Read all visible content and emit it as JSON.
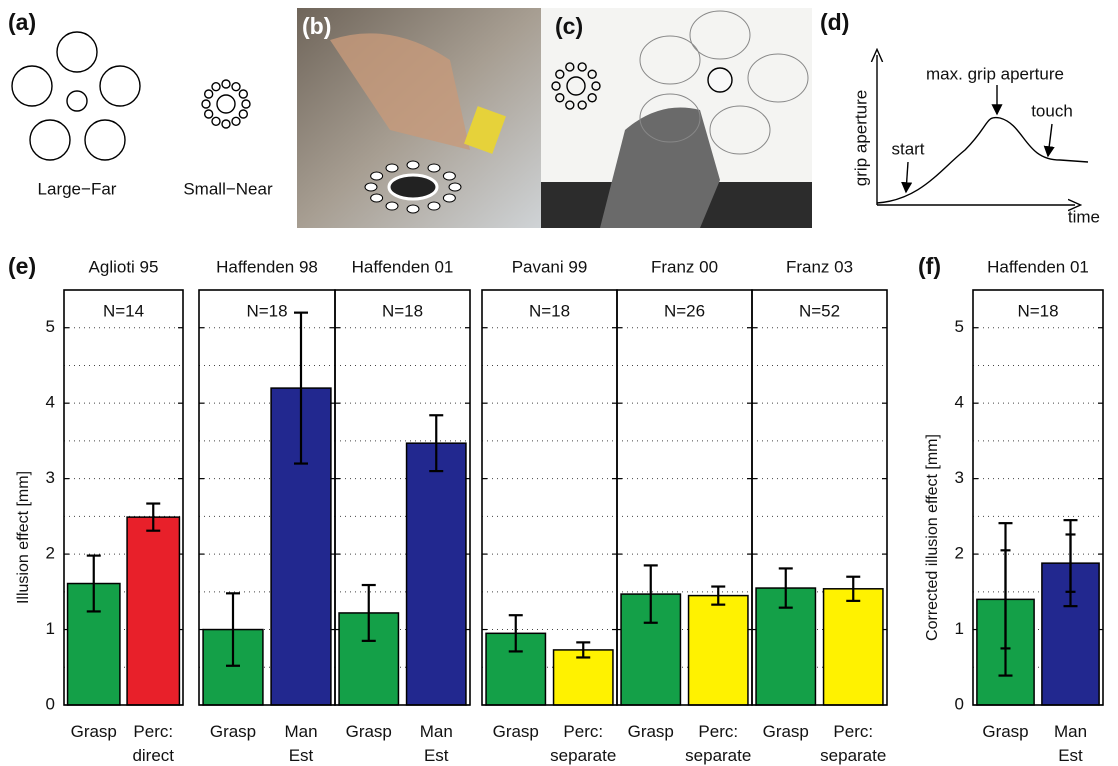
{
  "panels": {
    "a": {
      "label": "(a)",
      "captions": [
        "Large−Far",
        "Small−Near"
      ]
    },
    "b": {
      "label": "(b)"
    },
    "c": {
      "label": "(c)"
    },
    "d": {
      "label": "(d)",
      "y_label": "grip aperture",
      "x_label": "time",
      "annotations": [
        "max. grip aperture",
        "touch",
        "start"
      ]
    },
    "e": {
      "label": "(e)"
    },
    "f": {
      "label": "(f)"
    }
  },
  "chart_data": [
    {
      "type": "bar",
      "title": "Aglioti 95",
      "annotation": "N=14",
      "y_label": "Illusion effect [mm]",
      "categories": [
        "Grasp",
        "Perc: direct"
      ],
      "values": [
        1.61,
        2.49
      ],
      "errors": [
        0.37,
        0.18
      ],
      "colors": [
        "#14a048",
        "#e8202a"
      ],
      "ylim": [
        0,
        5.5
      ],
      "yticks": [
        0,
        1,
        2,
        3,
        4,
        5
      ],
      "minor_yticks": [
        0.5,
        1.5,
        2.5,
        3.5,
        4.5
      ],
      "ytick_labels": true,
      "grid": true
    },
    {
      "type": "bar",
      "title": "Haffenden 98",
      "annotation": "N=18",
      "categories": [
        "Grasp",
        "Man Est"
      ],
      "values": [
        1.0,
        4.2
      ],
      "errors": [
        0.48,
        1.0
      ],
      "colors": [
        "#14a048",
        "#22288f"
      ],
      "ylim": [
        0,
        5.5
      ],
      "yticks": [
        0,
        1,
        2,
        3,
        4,
        5
      ],
      "minor_yticks": [
        0.5,
        1.5,
        2.5,
        3.5,
        4.5
      ],
      "ytick_labels": false,
      "grid": true
    },
    {
      "type": "bar",
      "title": "Haffenden 01",
      "annotation": "N=18",
      "categories": [
        "Grasp",
        "Man Est"
      ],
      "values": [
        1.22,
        3.47
      ],
      "errors": [
        0.37,
        0.37
      ],
      "colors": [
        "#14a048",
        "#22288f"
      ],
      "ylim": [
        0,
        5.5
      ],
      "yticks": [
        0,
        1,
        2,
        3,
        4,
        5
      ],
      "minor_yticks": [
        0.5,
        1.5,
        2.5,
        3.5,
        4.5
      ],
      "ytick_labels": false,
      "grid": true
    },
    {
      "type": "bar",
      "title": "Pavani 99",
      "annotation": "N=18",
      "categories": [
        "Grasp",
        "Perc: separate"
      ],
      "values": [
        0.95,
        0.73
      ],
      "errors": [
        0.24,
        0.1
      ],
      "colors": [
        "#14a048",
        "#fff200"
      ],
      "ylim": [
        0,
        5.5
      ],
      "yticks": [
        0,
        1,
        2,
        3,
        4,
        5
      ],
      "minor_yticks": [
        0.5,
        1.5,
        2.5,
        3.5,
        4.5
      ],
      "ytick_labels": false,
      "grid": true
    },
    {
      "type": "bar",
      "title": "Franz 00",
      "annotation": "N=26",
      "categories": [
        "Grasp",
        "Perc: separate"
      ],
      "values": [
        1.47,
        1.45
      ],
      "errors": [
        0.38,
        0.12
      ],
      "colors": [
        "#14a048",
        "#fff200"
      ],
      "ylim": [
        0,
        5.5
      ],
      "yticks": [
        0,
        1,
        2,
        3,
        4,
        5
      ],
      "minor_yticks": [
        0.5,
        1.5,
        2.5,
        3.5,
        4.5
      ],
      "ytick_labels": false,
      "grid": true
    },
    {
      "type": "bar",
      "title": "Franz 03",
      "annotation": "N=52",
      "categories": [
        "Grasp",
        "Perc: separate"
      ],
      "values": [
        1.55,
        1.54
      ],
      "errors": [
        0.26,
        0.16
      ],
      "colors": [
        "#14a048",
        "#fff200"
      ],
      "ylim": [
        0,
        5.5
      ],
      "yticks": [
        0,
        1,
        2,
        3,
        4,
        5
      ],
      "minor_yticks": [
        0.5,
        1.5,
        2.5,
        3.5,
        4.5
      ],
      "ytick_labels": false,
      "grid": true
    },
    {
      "type": "bar",
      "title": "Haffenden 01",
      "annotation": "N=18",
      "y_label": "Corrected illusion effect [mm]",
      "categories": [
        "Grasp",
        "Man Est"
      ],
      "values": [
        1.4,
        1.88
      ],
      "errors": [
        1.01,
        0.57
      ],
      "errors2": [
        0.65,
        0.38
      ],
      "colors": [
        "#14a048",
        "#22288f"
      ],
      "ylim": [
        0,
        5.5
      ],
      "yticks": [
        0,
        1,
        2,
        3,
        4,
        5
      ],
      "minor_yticks": [
        0.5,
        1.5,
        2.5,
        3.5,
        4.5
      ],
      "ytick_labels": true,
      "grid": true
    }
  ]
}
